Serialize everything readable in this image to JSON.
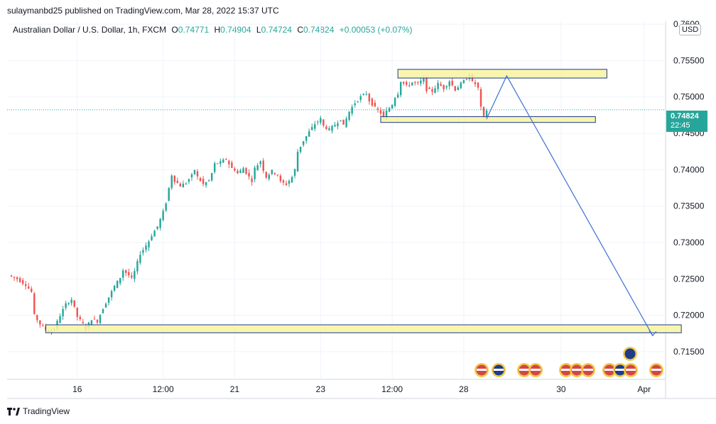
{
  "header": {
    "published_text": "sulaymanbd25 published on TradingView.com, Mar 28, 2022 15:37 UTC"
  },
  "legend": {
    "symbol": "Australian Dollar / U.S. Dollar, 1h, FXCM",
    "open_label": "O",
    "open": "0.74771",
    "high_label": "H",
    "high": "0.74904",
    "low_label": "L",
    "low": "0.74724",
    "close_label": "C",
    "close": "0.74824",
    "change": "+0.00053 (+0.07%)"
  },
  "currency_button": "USD",
  "price_tag": {
    "price": "0.74824",
    "countdown": "22:45"
  },
  "footer": {
    "brand": "TradingView",
    "logo_icon": "tradingview-logo-icon"
  },
  "colors": {
    "up": "#26a69a",
    "down": "#ef5350",
    "zone_fill": "#f7f3a0",
    "zone_border": "#1e3a8a",
    "projection": "#3d6fd6"
  },
  "chart_data": {
    "type": "candlestick",
    "title": "Australian Dollar / U.S. Dollar, 1h, FXCM",
    "y_ticks": [
      "0.71500",
      "0.72000",
      "0.72500",
      "0.73000",
      "0.73500",
      "0.74000",
      "0.74500",
      "0.75000",
      "0.75500",
      "0.7600"
    ],
    "y_tick_values": [
      0.715,
      0.72,
      0.725,
      0.73,
      0.735,
      0.74,
      0.745,
      0.75,
      0.755,
      0.76
    ],
    "ylim": [
      0.7112,
      0.7604
    ],
    "x_ticks": [
      "16",
      "12:00",
      "21",
      "23",
      "12:00",
      "28",
      "30",
      "Apr"
    ],
    "x_tick_index": [
      24,
      54,
      79,
      109,
      134,
      159,
      193,
      222
    ],
    "current_price": 0.74824,
    "close_path": [
      [
        0,
        0.7255
      ],
      [
        3,
        0.725
      ],
      [
        6,
        0.7242
      ],
      [
        8,
        0.7232
      ],
      [
        9,
        0.72
      ],
      [
        11,
        0.7188
      ],
      [
        13,
        0.718
      ],
      [
        15,
        0.7178
      ],
      [
        16,
        0.7182
      ],
      [
        18,
        0.72
      ],
      [
        20,
        0.7215
      ],
      [
        22,
        0.7222
      ],
      [
        24,
        0.7198
      ],
      [
        26,
        0.7188
      ],
      [
        27,
        0.7182
      ],
      [
        29,
        0.7195
      ],
      [
        31,
        0.7192
      ],
      [
        33,
        0.721
      ],
      [
        35,
        0.7225
      ],
      [
        37,
        0.724
      ],
      [
        39,
        0.7252
      ],
      [
        40,
        0.7262
      ],
      [
        42,
        0.7255
      ],
      [
        43,
        0.725
      ],
      [
        44,
        0.726
      ],
      [
        46,
        0.7285
      ],
      [
        47,
        0.729
      ],
      [
        49,
        0.7302
      ],
      [
        50,
        0.731
      ],
      [
        52,
        0.7322
      ],
      [
        54,
        0.7342
      ],
      [
        55,
        0.7355
      ],
      [
        56,
        0.7375
      ],
      [
        57,
        0.7393
      ],
      [
        58,
        0.7385
      ],
      [
        60,
        0.7378
      ],
      [
        62,
        0.7382
      ],
      [
        64,
        0.7392
      ],
      [
        65,
        0.74
      ],
      [
        66,
        0.739
      ],
      [
        68,
        0.738
      ],
      [
        70,
        0.7385
      ],
      [
        71,
        0.7395
      ],
      [
        72,
        0.7408
      ],
      [
        74,
        0.741
      ],
      [
        76,
        0.7415
      ],
      [
        77,
        0.7408
      ],
      [
        78,
        0.7402
      ],
      [
        79,
        0.74
      ],
      [
        80,
        0.7395
      ],
      [
        82,
        0.7402
      ],
      [
        84,
        0.739
      ],
      [
        85,
        0.7385
      ],
      [
        86,
        0.7402
      ],
      [
        88,
        0.7412
      ],
      [
        89,
        0.74
      ],
      [
        90,
        0.739
      ],
      [
        92,
        0.7398
      ],
      [
        94,
        0.7393
      ],
      [
        95,
        0.7383
      ],
      [
        97,
        0.738
      ],
      [
        99,
        0.739
      ],
      [
        100,
        0.74
      ],
      [
        101,
        0.7425
      ],
      [
        103,
        0.744
      ],
      [
        105,
        0.7452
      ],
      [
        107,
        0.7463
      ],
      [
        109,
        0.747
      ],
      [
        110,
        0.746
      ],
      [
        112,
        0.7455
      ],
      [
        114,
        0.7462
      ],
      [
        116,
        0.747
      ],
      [
        117,
        0.746
      ],
      [
        119,
        0.748
      ],
      [
        121,
        0.7492
      ],
      [
        123,
        0.75
      ],
      [
        125,
        0.7505
      ],
      [
        126,
        0.7495
      ],
      [
        128,
        0.7485
      ],
      [
        130,
        0.7478
      ],
      [
        131,
        0.7472
      ],
      [
        132,
        0.748
      ],
      [
        134,
        0.749
      ],
      [
        135,
        0.75
      ],
      [
        136,
        0.7505
      ],
      [
        137,
        0.7522
      ],
      [
        139,
        0.7515
      ],
      [
        141,
        0.752
      ],
      [
        143,
        0.7518
      ],
      [
        145,
        0.7525
      ],
      [
        146,
        0.751
      ],
      [
        148,
        0.7508
      ],
      [
        150,
        0.7518
      ],
      [
        152,
        0.7512
      ],
      [
        154,
        0.7522
      ],
      [
        156,
        0.751
      ],
      [
        158,
        0.7518
      ],
      [
        160,
        0.7525
      ],
      [
        161,
        0.7532
      ],
      [
        162,
        0.752
      ],
      [
        163,
        0.7518
      ],
      [
        164,
        0.7512
      ],
      [
        165,
        0.7485
      ],
      [
        166,
        0.7472
      ],
      [
        167,
        0.7482
      ]
    ],
    "zones": [
      {
        "from_index": 136,
        "to_index": 209,
        "low": 0.7526,
        "high": 0.7535
      },
      {
        "from_index": 130,
        "to_index": 205,
        "low": 0.7465,
        "high": 0.747
      },
      {
        "from_index": 13,
        "to_index": 235,
        "low": 0.7176,
        "high": 0.7184
      }
    ],
    "projection": [
      [
        167,
        0.747
      ],
      [
        174,
        0.7529
      ],
      [
        225,
        0.7172
      ]
    ],
    "timeline_icons": [
      "us-flag-icon",
      "australia-flag-icon",
      "us-flag-icon",
      "us-flag-icon",
      "us-flag-icon",
      "us-flag-icon",
      "us-flag-icon",
      "us-flag-icon",
      "australia-flag-icon",
      "us-flag-icon",
      "us-flag-icon"
    ]
  }
}
